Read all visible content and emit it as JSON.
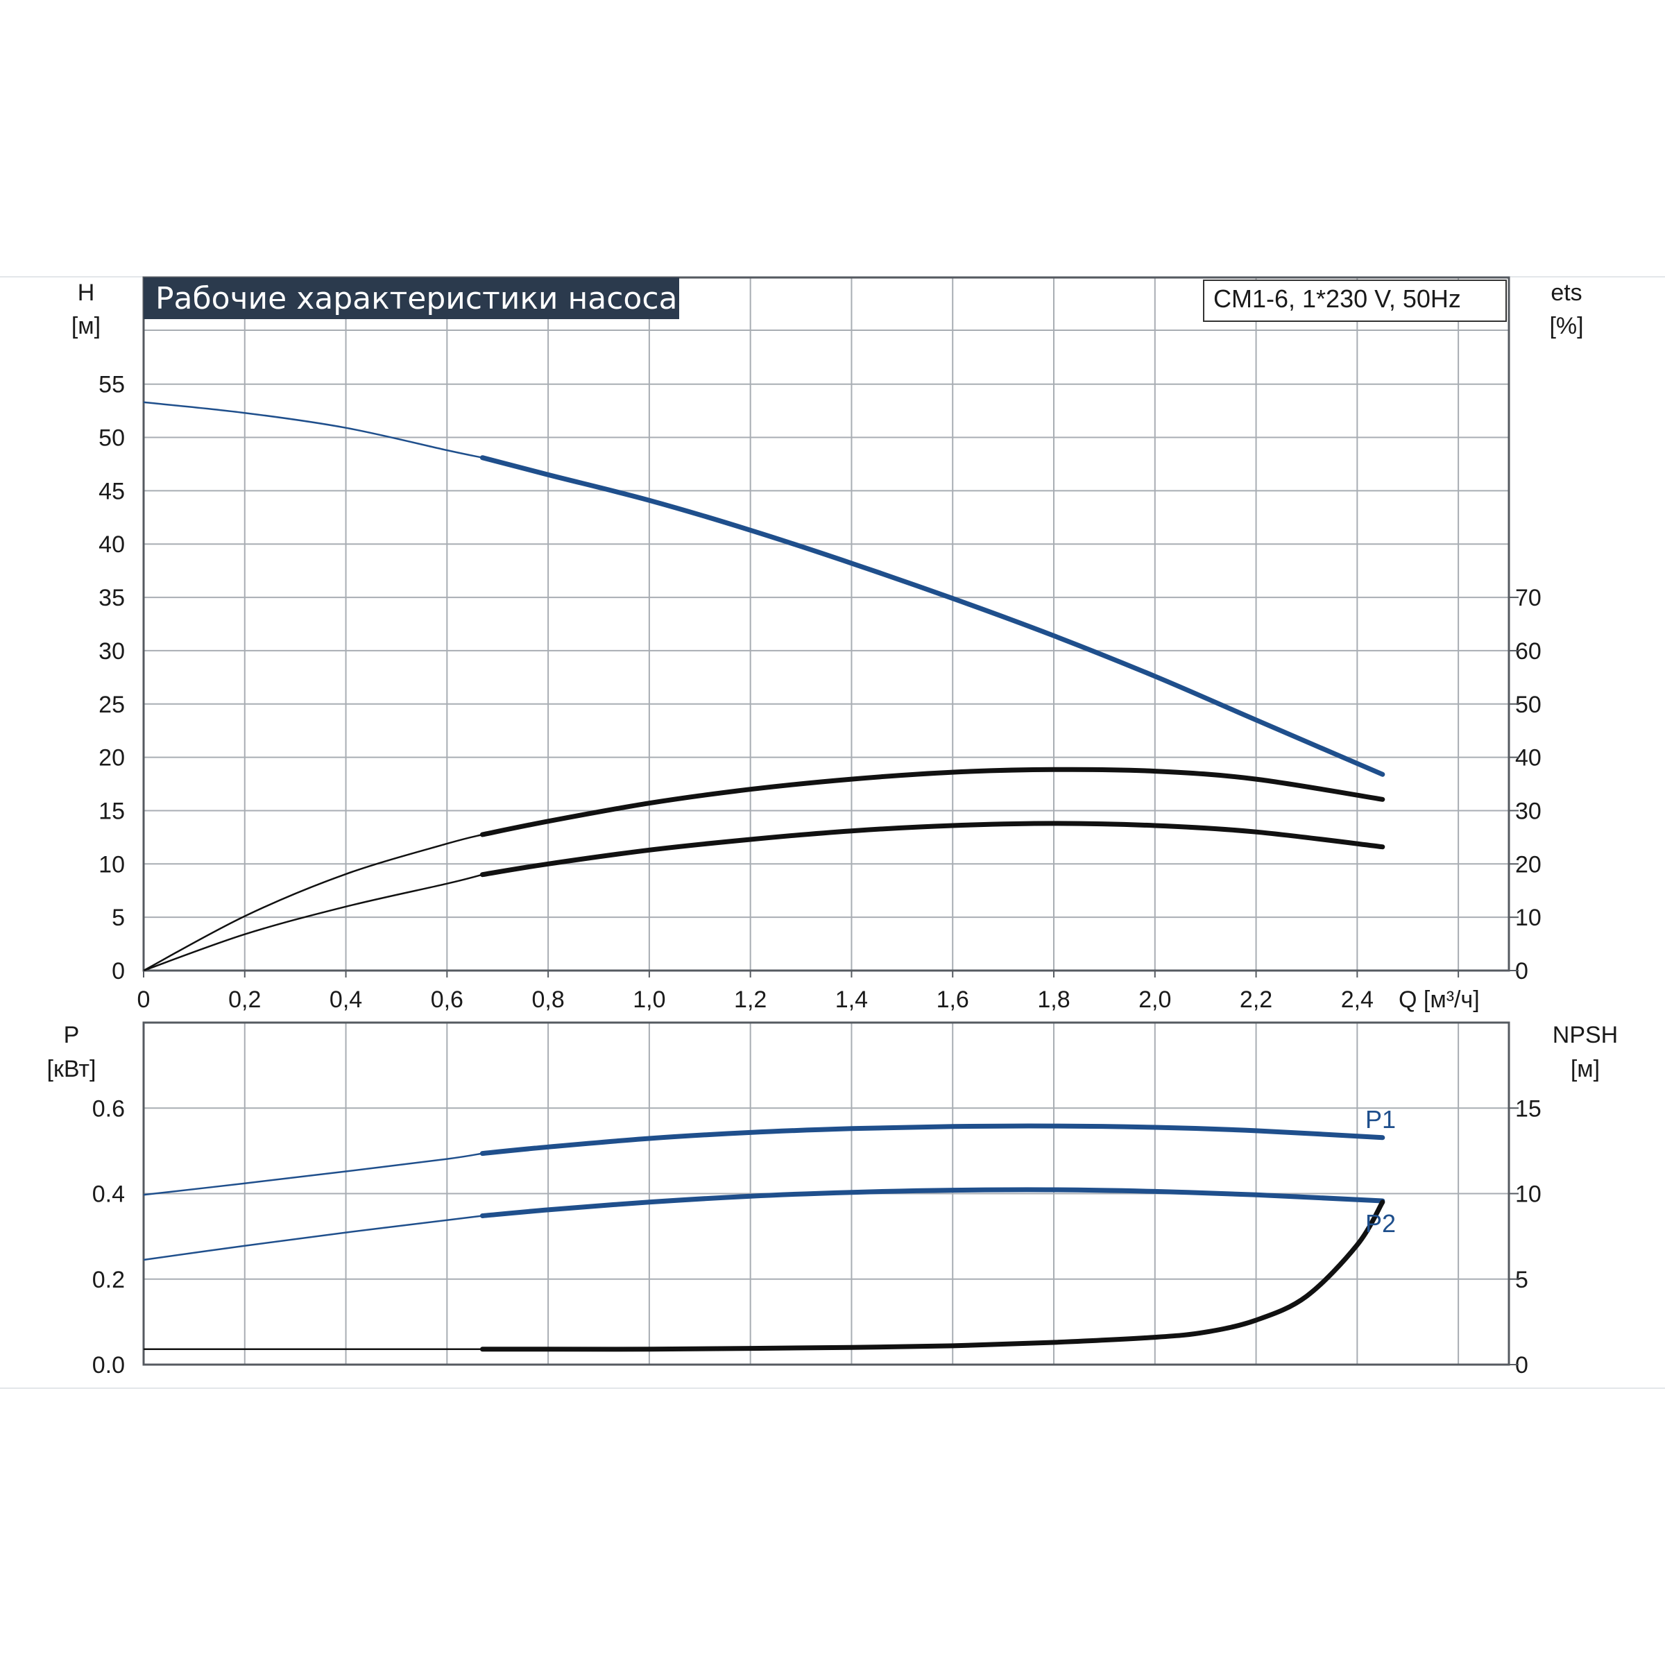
{
  "title": "Рабочие характеристики насоса",
  "model": "CM1-6, 1*230 V, 50Hz",
  "colors": {
    "blue": "#1f4f8c",
    "black": "#111111",
    "grid": "#a8adb3",
    "title_bg": "#2b3a4d"
  },
  "chart_data": [
    {
      "type": "line",
      "panel": "top",
      "left_axis": {
        "label_line1": "H",
        "label_line2": "[м]",
        "ticks": [
          "0",
          "5",
          "10",
          "15",
          "20",
          "25",
          "30",
          "35",
          "40",
          "45",
          "50",
          "55"
        ],
        "ylim": [
          0,
          65
        ]
      },
      "right_axis": {
        "label_line1": "ets",
        "label_line2": "[%]",
        "ticks": [
          "0",
          "10",
          "20",
          "30",
          "40",
          "50",
          "60",
          "70"
        ],
        "ylim": [
          0,
          130
        ]
      },
      "x_axis": {
        "label": "Q [м³/ч]",
        "ticks": [
          "0",
          "0,2",
          "0,4",
          "0,6",
          "0,8",
          "1,0",
          "1,2",
          "1,4",
          "1,6",
          "1,8",
          "2,0",
          "2,2",
          "2,4"
        ],
        "xlim": [
          0,
          2.7
        ]
      },
      "series": [
        {
          "id": "head",
          "axis": "left",
          "color": "blue",
          "x": [
            0,
            0.2,
            0.4,
            0.6,
            0.67,
            0.8,
            1.0,
            1.2,
            1.4,
            1.6,
            1.8,
            2.0,
            2.2,
            2.45
          ],
          "y": [
            53.3,
            52.3,
            50.9,
            48.8,
            48.1,
            46.5,
            44.1,
            41.3,
            38.2,
            34.9,
            31.4,
            27.6,
            23.5,
            18.4
          ]
        },
        {
          "id": "eta-upper",
          "axis": "right",
          "color": "black",
          "x": [
            0,
            0.2,
            0.4,
            0.6,
            0.67,
            0.8,
            1.0,
            1.2,
            1.4,
            1.6,
            1.8,
            2.0,
            2.2,
            2.45
          ],
          "y": [
            0,
            10.2,
            18.1,
            23.8,
            25.5,
            28.0,
            31.4,
            34.0,
            35.9,
            37.2,
            37.7,
            37.4,
            35.9,
            32.1
          ]
        },
        {
          "id": "eta-lower",
          "axis": "right",
          "color": "black",
          "x": [
            0,
            0.2,
            0.4,
            0.6,
            0.67,
            0.8,
            1.0,
            1.2,
            1.4,
            1.6,
            1.8,
            2.0,
            2.2,
            2.45
          ],
          "y": [
            0,
            6.8,
            12.0,
            16.3,
            18.0,
            20.0,
            22.6,
            24.6,
            26.2,
            27.2,
            27.6,
            27.2,
            26.0,
            23.2
          ]
        }
      ]
    },
    {
      "type": "line",
      "panel": "bottom",
      "left_axis": {
        "label_line1": "P",
        "label_line2": "[кВт]",
        "ticks": [
          "0.0",
          "0.2",
          "0.4",
          "0.6"
        ],
        "ylim": [
          0,
          0.8
        ]
      },
      "right_axis": {
        "label_line1": "NPSH",
        "label_line2": "[м]",
        "ticks": [
          "0",
          "5",
          "10",
          "15"
        ],
        "ylim": [
          0,
          20
        ]
      },
      "x_axis": {
        "xlim": [
          0,
          2.7
        ]
      },
      "series": [
        {
          "id": "p1",
          "name": "P1",
          "axis": "left",
          "color": "blue",
          "x": [
            0,
            0.2,
            0.4,
            0.6,
            0.67,
            0.8,
            1.0,
            1.2,
            1.4,
            1.6,
            1.8,
            2.0,
            2.2,
            2.45
          ],
          "y": [
            0.397,
            0.424,
            0.452,
            0.481,
            0.494,
            0.509,
            0.529,
            0.543,
            0.552,
            0.557,
            0.558,
            0.555,
            0.547,
            0.531
          ]
        },
        {
          "id": "p2",
          "name": "P2",
          "axis": "left",
          "color": "blue",
          "x": [
            0,
            0.2,
            0.4,
            0.6,
            0.67,
            0.8,
            1.0,
            1.2,
            1.4,
            1.6,
            1.8,
            2.0,
            2.2,
            2.45
          ],
          "y": [
            0.245,
            0.278,
            0.309,
            0.338,
            0.348,
            0.362,
            0.38,
            0.394,
            0.403,
            0.408,
            0.409,
            0.405,
            0.397,
            0.383
          ]
        },
        {
          "id": "npsh",
          "axis": "right",
          "color": "black",
          "x": [
            0,
            0.67,
            0.8,
            1.0,
            1.2,
            1.4,
            1.6,
            1.8,
            2.0,
            2.1,
            2.2,
            2.3,
            2.4,
            2.45
          ],
          "y": [
            0.9,
            0.9,
            0.9,
            0.9,
            0.95,
            1.0,
            1.1,
            1.3,
            1.6,
            1.9,
            2.6,
            4.0,
            7.0,
            9.5
          ]
        }
      ]
    }
  ]
}
